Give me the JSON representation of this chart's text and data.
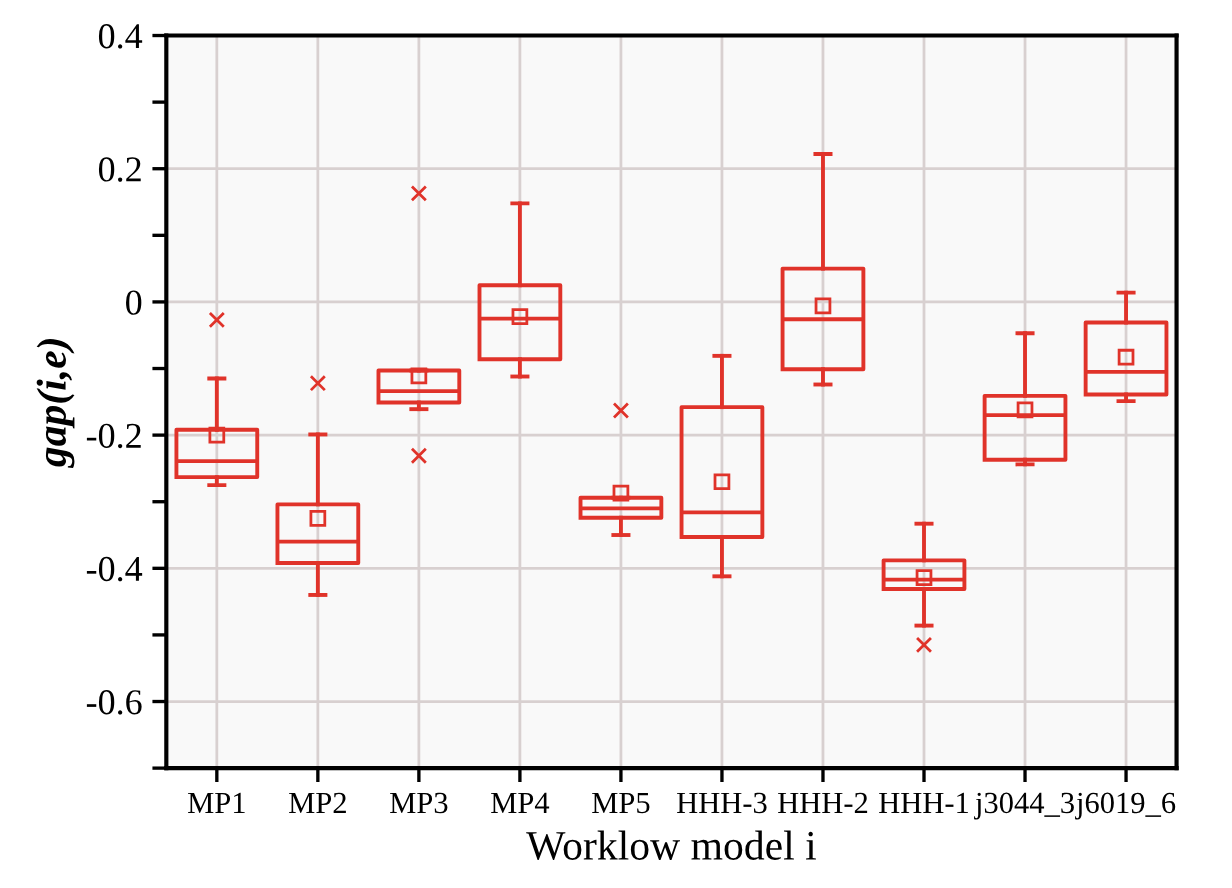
{
  "chart_data": {
    "type": "box",
    "xlabel": "Worklow model i",
    "ylabel": "gap(i,e)",
    "categories": [
      "MP1",
      "MP2",
      "MP3",
      "MP4",
      "MP5",
      "HHH-3",
      "HHH-2",
      "HHH-1",
      "j3044_3",
      "j6019_6"
    ],
    "color": "#e0332a",
    "boxes": [
      {
        "low": -0.275,
        "q1": -0.263,
        "median": -0.239,
        "q3": -0.192,
        "high": -0.115,
        "mean": -0.2,
        "outliers": [
          -0.027
        ]
      },
      {
        "low": -0.44,
        "q1": -0.392,
        "median": -0.36,
        "q3": -0.304,
        "high": -0.199,
        "mean": -0.325,
        "outliers": [
          -0.122
        ]
      },
      {
        "low": -0.161,
        "q1": -0.151,
        "median": -0.134,
        "q3": -0.103,
        "high": -0.103,
        "mean": -0.111,
        "outliers": [
          0.163,
          -0.231
        ]
      },
      {
        "low": -0.112,
        "q1": -0.086,
        "median": -0.025,
        "q3": 0.025,
        "high": 0.148,
        "mean": -0.022
      },
      {
        "low": -0.35,
        "q1": -0.324,
        "median": -0.31,
        "q3": -0.294,
        "high": -0.294,
        "mean": -0.287,
        "outliers": [
          -0.163
        ]
      },
      {
        "low": -0.412,
        "q1": -0.353,
        "median": -0.316,
        "q3": -0.158,
        "high": -0.081,
        "mean": -0.27
      },
      {
        "low": -0.124,
        "q1": -0.101,
        "median": -0.026,
        "q3": 0.05,
        "high": 0.222,
        "mean": -0.006
      },
      {
        "low": -0.486,
        "q1": -0.431,
        "median": -0.417,
        "q3": -0.388,
        "high": -0.333,
        "mean": -0.414,
        "outliers": [
          -0.515
        ]
      },
      {
        "low": -0.244,
        "q1": -0.237,
        "median": -0.17,
        "q3": -0.141,
        "high": -0.047,
        "mean": -0.162
      },
      {
        "low": -0.149,
        "q1": -0.139,
        "median": -0.105,
        "q3": -0.031,
        "high": 0.014,
        "mean": -0.083
      }
    ],
    "ylim": [
      -0.7,
      0.4
    ],
    "yticks": [
      {
        "value": -0.7,
        "label": null
      },
      {
        "value": -0.6,
        "label": "-0.6"
      },
      {
        "value": -0.5,
        "label": null
      },
      {
        "value": -0.4,
        "label": "-0.4"
      },
      {
        "value": -0.3,
        "label": null
      },
      {
        "value": -0.2,
        "label": "-0.2"
      },
      {
        "value": -0.1,
        "label": null
      },
      {
        "value": 0,
        "label": "0"
      },
      {
        "value": 0.1,
        "label": null
      },
      {
        "value": 0.2,
        "label": "0.2"
      },
      {
        "value": 0.3,
        "label": null
      },
      {
        "value": 0.4,
        "label": "0.4"
      }
    ],
    "grid": true
  }
}
